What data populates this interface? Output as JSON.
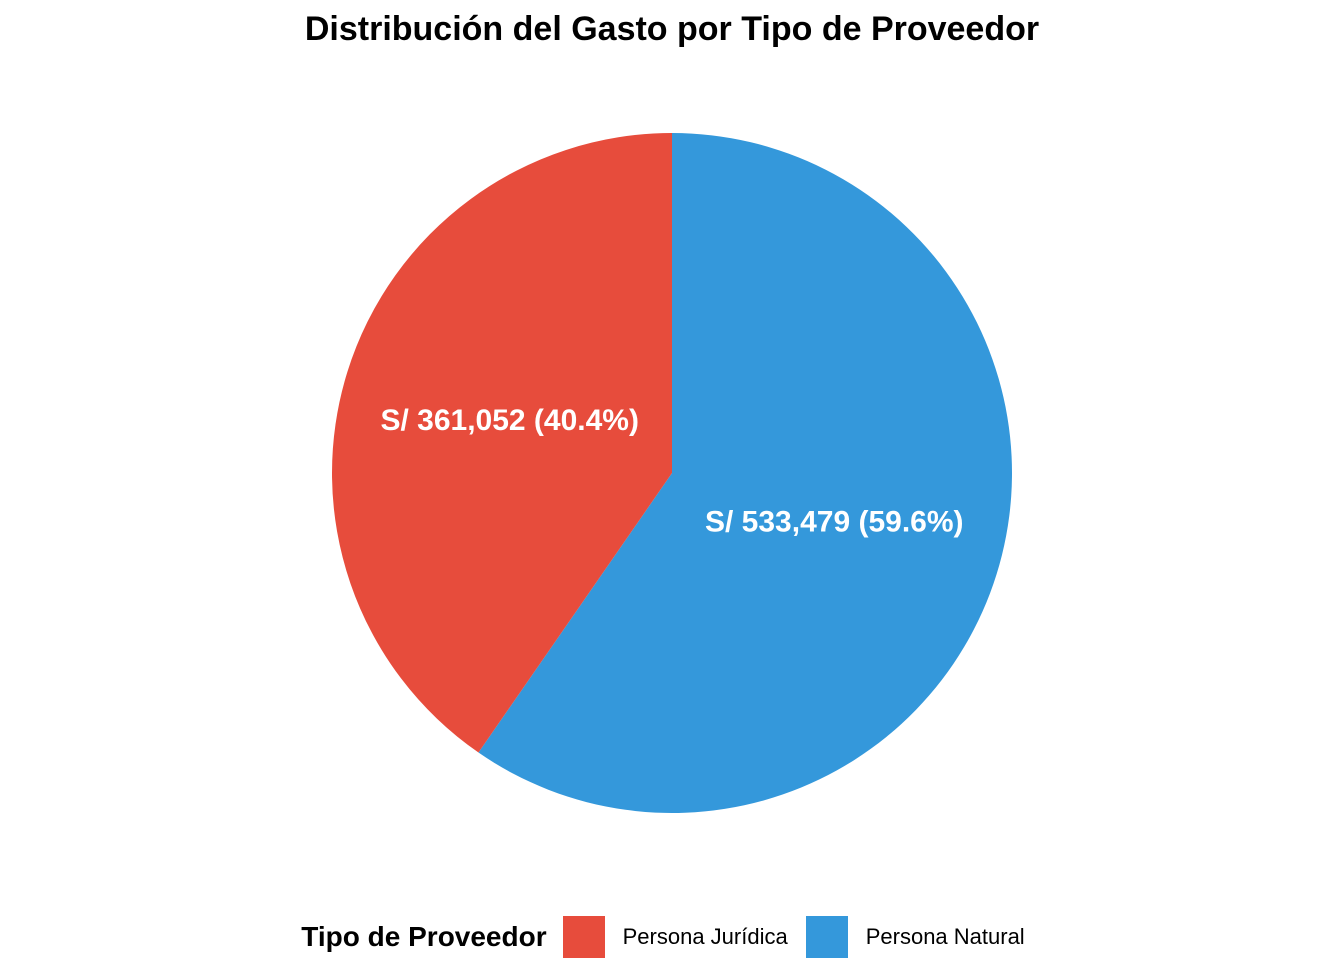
{
  "chart_data": {
    "type": "pie",
    "title": "Distribución del Gasto por Tipo de Proveedor",
    "legend_title": "Tipo de Proveedor",
    "legend_placement": "bottom",
    "slices": [
      {
        "name": "Persona Jurídica",
        "value": 361052,
        "percent": 40.4,
        "label": "S/ 361,052 (40.4%)",
        "color": "#E74C3C"
      },
      {
        "name": "Persona Natural",
        "value": 533479,
        "percent": 59.6,
        "label": "S/ 533,479 (59.6%)",
        "color": "#3498DB"
      }
    ]
  }
}
